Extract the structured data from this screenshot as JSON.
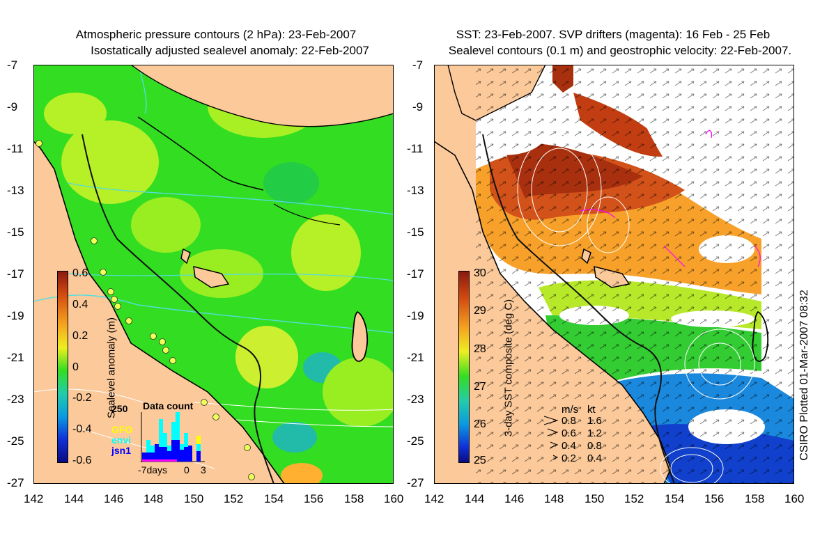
{
  "left_panel": {
    "title_line1": "Atmospheric pressure contours (2 hPa): 23-Feb-2007",
    "title_line2": "Isostatically adjusted sealevel anomaly: 22-Feb-2007",
    "y_ticks": [
      "-7",
      "-9",
      "-11",
      "-13",
      "-15",
      "-17",
      "-19",
      "-21",
      "-23",
      "-25",
      "-27"
    ],
    "x_ticks": [
      "142",
      "144",
      "146",
      "148",
      "150",
      "152",
      "154",
      "156",
      "158",
      "160"
    ],
    "colorbar": {
      "label": "Sealevel anomaly (m)",
      "ticks": [
        "0.6",
        "0.4",
        "0.2",
        "0",
        "-0.2",
        "-0.4",
        "-0.6"
      ],
      "range": [
        -0.6,
        0.6
      ]
    },
    "legend": {
      "count_max": "250",
      "sat1": "GFO",
      "sat2": "envi",
      "sat3": "jsn1",
      "sat1_color": "#ffff00",
      "sat2_color": "#00ffff",
      "sat3_color": "#0000ff",
      "inset_title": "Data count",
      "inset_x_left": "-7days",
      "inset_x_mid": "0",
      "inset_x_right": "3"
    }
  },
  "right_panel": {
    "title_line1": "SST: 23-Feb-2007. SVP drifters (magenta): 16 Feb - 25 Feb",
    "title_line2": "Sealevel contours (0.1 m) and geostrophic velocity: 22-Feb-2007.",
    "y_ticks": [
      "-7",
      "-9",
      "-11",
      "-13",
      "-15",
      "-17",
      "-19",
      "-21",
      "-23",
      "-25",
      "-27"
    ],
    "x_ticks": [
      "142",
      "144",
      "146",
      "148",
      "150",
      "152",
      "154",
      "156",
      "158",
      "160"
    ],
    "colorbar": {
      "label": "3-day SST composite (deg C)",
      "ticks": [
        "30",
        "29",
        "28",
        "27",
        "26",
        "25"
      ],
      "range": [
        25,
        30
      ]
    },
    "velocity_key": {
      "header_ms": "m/s",
      "header_kt": "kt",
      "rows": [
        {
          "ms": "0.8",
          "kt": "1.6"
        },
        {
          "ms": "0.6",
          "kt": "1.2"
        },
        {
          "ms": "0.4",
          "kt": "0.8"
        },
        {
          "ms": "0.2",
          "kt": "0.4"
        }
      ]
    },
    "credit": "CSIRO Plotted 01-Mar-2007 08:32"
  },
  "colors": {
    "land": "#fbc99a",
    "ocean_green": "#33dd22",
    "sst_no_data": "#ffffff"
  }
}
